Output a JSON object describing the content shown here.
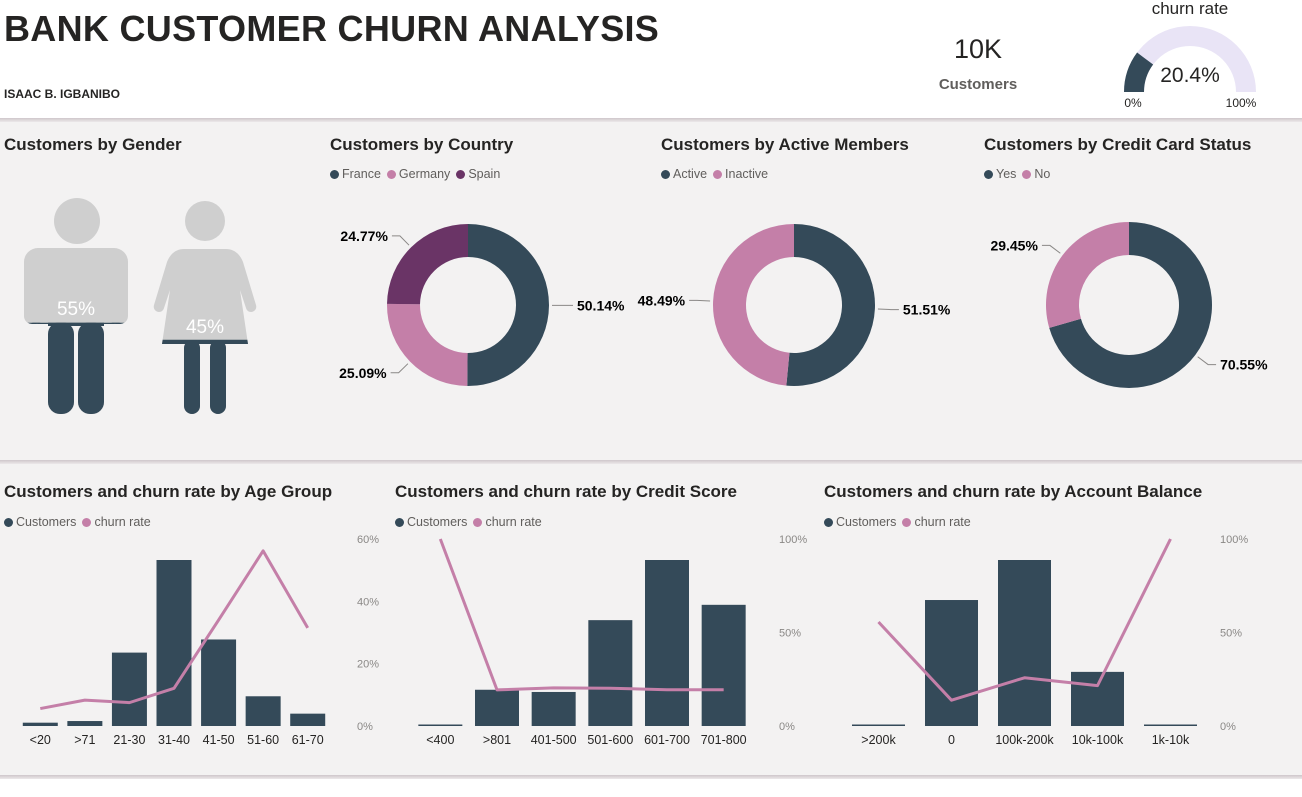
{
  "header": {
    "title": "BANK CUSTOMER CHURN ANALYSIS",
    "author": "ISAAC B. IGBANIBO",
    "kpi_value": "10K",
    "kpi_label": "Customers",
    "gauge": {
      "title": "churn rate",
      "value_label": "20.4%",
      "value": 0.204,
      "min_label": "0%",
      "max_label": "100%"
    }
  },
  "colors": {
    "dark": "#344a59",
    "pink": "#c47fa8",
    "purple": "#6a3466",
    "gray": "#cfcfcf",
    "gauge_track": "#e9e4f6"
  },
  "gender": {
    "title": "Customers by Gender",
    "male_label": "55%",
    "male_value": 0.55,
    "female_label": "45%",
    "female_value": 0.45
  },
  "charts": {
    "country": {
      "title": "Customers by Country",
      "legend": [
        "France",
        "Germany",
        "Spain"
      ]
    },
    "active": {
      "title": "Customers by Active Members",
      "legend": [
        "Active",
        "Inactive"
      ]
    },
    "card": {
      "title": "Customers by Credit Card Status",
      "legend": [
        "Yes",
        "No"
      ]
    },
    "age": {
      "title": "Customers and churn rate by Age Group",
      "legend": [
        "Customers",
        "churn rate"
      ]
    },
    "credit": {
      "title": "Customers and churn rate by Credit Score",
      "legend": [
        "Customers",
        "churn rate"
      ]
    },
    "balance": {
      "title": "Customers and churn rate by Account Balance",
      "legend": [
        "Customers",
        "churn rate"
      ]
    }
  },
  "chart_data": [
    {
      "id": "country",
      "type": "pie",
      "donut": true,
      "slices": [
        {
          "label": "France",
          "value": 50.14,
          "text": "50.14%"
        },
        {
          "label": "Germany",
          "value": 25.09,
          "text": "25.09%"
        },
        {
          "label": "Spain",
          "value": 24.77,
          "text": "24.77%"
        }
      ]
    },
    {
      "id": "active",
      "type": "pie",
      "donut": true,
      "slices": [
        {
          "label": "Active",
          "value": 51.51,
          "text": "51.51%"
        },
        {
          "label": "Inactive",
          "value": 48.49,
          "text": "48.49%"
        }
      ]
    },
    {
      "id": "card",
      "type": "pie",
      "donut": true,
      "slices": [
        {
          "label": "Yes",
          "value": 70.55,
          "text": "70.55%"
        },
        {
          "label": "No",
          "value": 29.45,
          "text": "29.45%"
        }
      ]
    },
    {
      "id": "age",
      "type": "bar",
      "combo_line": true,
      "categories": [
        "<20",
        ">71",
        "21-30",
        "31-40",
        "41-50",
        "51-60",
        "61-70"
      ],
      "series": [
        {
          "name": "Customers",
          "values": [
            89,
            133,
            1968,
            4451,
            2320,
            797,
            331
          ]
        },
        {
          "name": "churn rate",
          "values": [
            5.6,
            8.3,
            7.5,
            12.1,
            34.0,
            56.2,
            31.5
          ]
        }
      ],
      "y2ticks": [
        "0%",
        "20%",
        "40%",
        "60%"
      ],
      "y2lim": [
        0,
        60
      ]
    },
    {
      "id": "credit",
      "type": "bar",
      "combo_line": true,
      "categories": [
        "<400",
        ">801",
        "401-500",
        "501-600",
        "601-700",
        "701-800"
      ],
      "series": [
        {
          "name": "Customers",
          "values": [
            19,
            655,
            615,
            1913,
            3000,
            2190
          ]
        },
        {
          "name": "churn rate",
          "values": [
            100,
            19.3,
            20.4,
            20.2,
            19.4,
            19.4
          ]
        }
      ],
      "y2ticks": [
        "0%",
        "50%",
        "100%"
      ],
      "y2lim": [
        0,
        100
      ]
    },
    {
      "id": "balance",
      "type": "bar",
      "combo_line": true,
      "categories": [
        ">200k",
        "0",
        "100k-200k",
        "10k-100k",
        "1k-10k"
      ],
      "series": [
        {
          "name": "Customers",
          "values": [
            28,
            3617,
            4766,
            1554,
            6
          ]
        },
        {
          "name": "churn rate",
          "values": [
            55.6,
            13.8,
            25.8,
            21.6,
            100
          ]
        }
      ],
      "y2ticks": [
        "0%",
        "50%",
        "100%"
      ],
      "y2lim": [
        0,
        100
      ]
    }
  ]
}
